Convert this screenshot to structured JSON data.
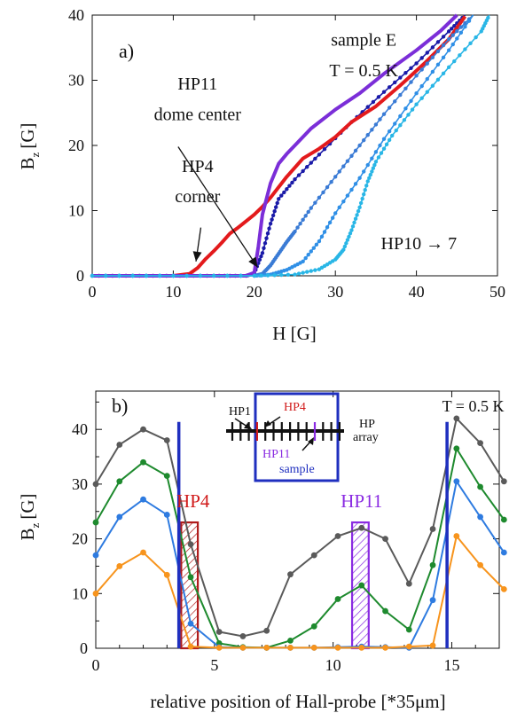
{
  "chart_data": [
    {
      "panel": "a)",
      "type": "line",
      "xlabel": "H [G]",
      "ylabel": "B",
      "ylabel_sub": "z",
      "ylabel_unit": "[G]",
      "xlim": [
        0,
        50
      ],
      "ylim": [
        0,
        40
      ],
      "xticks": [
        0,
        10,
        20,
        30,
        40,
        50
      ],
      "yticks": [
        0,
        10,
        20,
        30,
        40
      ],
      "grid": false,
      "annotations": [
        {
          "text": "sample E",
          "x": 33.5,
          "y": 35.3
        },
        {
          "text": "T = 0.5 K",
          "x": 33.5,
          "y": 30.6
        },
        {
          "text": "HP11",
          "x": 13.0,
          "y": 28.6
        },
        {
          "text": "dome center",
          "x": 13.0,
          "y": 23.9
        },
        {
          "text": "HP4",
          "x": 13.0,
          "y": 15.9
        },
        {
          "text": "corner",
          "x": 13.0,
          "y": 11.3
        },
        {
          "text": "HP10 → 7",
          "x": 40.3,
          "y": 4.1
        }
      ],
      "arrows": [
        {
          "from": [
            10.6,
            19.8
          ],
          "to": [
            20.4,
            1.3
          ]
        },
        {
          "from": [
            13.4,
            7.4
          ],
          "to": [
            12.8,
            2.2
          ]
        }
      ],
      "series": [
        {
          "color": "#1a1aa8",
          "style": "dotted",
          "x": [
            0,
            5,
            10,
            15,
            19,
            20,
            21,
            22,
            23,
            25,
            28,
            32,
            36,
            40,
            44,
            46
          ],
          "y": [
            0,
            0,
            0,
            0,
            0,
            0.4,
            3.5,
            8,
            11.8,
            14.8,
            18.6,
            23.6,
            28.2,
            32.6,
            37.5,
            40
          ]
        },
        {
          "color": "#e31a1c",
          "style": "solid",
          "x": [
            0,
            5,
            10,
            12,
            13,
            14,
            15,
            16,
            17,
            18,
            19,
            20,
            21,
            22,
            24,
            26,
            28,
            30,
            32,
            35,
            38,
            41,
            44,
            46
          ],
          "y": [
            0,
            0,
            0,
            0.3,
            1.2,
            2.6,
            3.8,
            5.1,
            6.5,
            7.4,
            8.4,
            9.4,
            10.6,
            12.0,
            15.2,
            18.0,
            19.5,
            21.3,
            23.6,
            26.0,
            29.2,
            32.6,
            36.3,
            39.8
          ]
        },
        {
          "color": "#7b2ed8",
          "style": "solid",
          "x": [
            0,
            5,
            10,
            15,
            19,
            20,
            20.5,
            21,
            22,
            23,
            24,
            25,
            27,
            30,
            33,
            36,
            40,
            43,
            45
          ],
          "y": [
            0,
            0,
            0,
            0,
            0,
            0.5,
            4.5,
            9.4,
            14.2,
            17.2,
            18.7,
            20.0,
            22.6,
            25.5,
            28.0,
            31.0,
            34.6,
            37.6,
            40
          ]
        },
        {
          "color": "#3a7bd5",
          "style": "dotted",
          "x": [
            0,
            10,
            20,
            21,
            22,
            23,
            24,
            25,
            27,
            30,
            33,
            36,
            40,
            44,
            47
          ],
          "y": [
            0,
            0,
            0,
            0.3,
            1.6,
            3.4,
            5.2,
            6.8,
            10.4,
            15.2,
            20.0,
            24.8,
            30.7,
            36.3,
            40
          ]
        },
        {
          "color": "#2f8fe6",
          "style": "dotted",
          "x": [
            0,
            10,
            20,
            22,
            24,
            26,
            28,
            30,
            33,
            36,
            40,
            44,
            47
          ],
          "y": [
            0,
            0,
            0,
            0.2,
            0.9,
            2.2,
            5.3,
            9.6,
            15.0,
            21.0,
            28.0,
            34.6,
            40
          ]
        },
        {
          "color": "#29b6e6",
          "style": "dotted",
          "x": [
            0,
            10,
            20,
            25,
            28,
            30,
            31,
            32,
            33,
            34,
            35,
            37,
            40,
            44,
            48,
            49
          ],
          "y": [
            0,
            0,
            0,
            0.2,
            1.0,
            2.5,
            4.0,
            7.0,
            10.5,
            14.5,
            17.5,
            21.5,
            26.3,
            32.0,
            37.5,
            40
          ]
        }
      ]
    },
    {
      "panel": "b)",
      "type": "line",
      "xlabel": "relative position of Hall-probe [*35μm]",
      "ylabel": "B",
      "ylabel_sub": "z",
      "ylabel_unit": "[G]",
      "xlim": [
        0,
        17
      ],
      "ylim": [
        0,
        47
      ],
      "xticks": [
        0,
        5,
        10,
        15
      ],
      "yticks": [
        0,
        10,
        20,
        30,
        40
      ],
      "grid": false,
      "annotations": [
        {
          "text": "T = 0.5 K",
          "x": 15.9,
          "y": 43.3,
          "color": "#111111"
        },
        {
          "text": "HP4",
          "x": 4.1,
          "y": 25.8,
          "color": "#d11b1b"
        },
        {
          "text": "HP11",
          "x": 11.2,
          "y": 25.8,
          "color": "#8a2be2"
        }
      ],
      "inset": {
        "labels": [
          {
            "text": "HP1",
            "color": "#111111"
          },
          {
            "text": "HP4",
            "color": "#d11b1b"
          },
          {
            "text": "HP",
            "color": "#111111"
          },
          {
            "text": "array",
            "color": "#111111"
          },
          {
            "text": "HP11",
            "color": "#8a2be2"
          },
          {
            "text": "sample",
            "color": "#1f2fbf"
          }
        ]
      },
      "vlines": [
        {
          "x": 3.5,
          "color": "#1f2fbf"
        },
        {
          "x": 14.8,
          "color": "#1f2fbf"
        }
      ],
      "boxes": [
        {
          "x": [
            3.6,
            4.3
          ],
          "y": [
            0,
            23
          ],
          "color": "#b01c1c"
        },
        {
          "x": [
            10.8,
            11.5
          ],
          "y": [
            0,
            23
          ],
          "color": "#8a2be2"
        }
      ],
      "x": [
        0,
        1,
        2,
        3,
        4,
        5,
        6,
        7,
        8,
        9,
        10,
        11,
        12,
        13,
        14,
        15,
        16,
        17
      ],
      "series": [
        {
          "color": "#5a5a5a",
          "x": [
            0,
            1,
            2,
            3,
            4,
            5.2,
            6.2,
            7.2,
            8.2,
            9.2,
            10.2,
            11.2,
            12.2,
            13.2,
            14.2,
            15.2,
            16.2,
            17.2
          ],
          "y": [
            30,
            37.2,
            40,
            38,
            19,
            3,
            2.2,
            3.2,
            13.5,
            17,
            20.5,
            22,
            20,
            11.8,
            21.8,
            42,
            37.5,
            30.5
          ]
        },
        {
          "color": "#1e8a2e",
          "x": [
            0,
            1,
            2,
            3,
            4,
            5.2,
            6.2,
            7.2,
            8.2,
            9.2,
            10.2,
            11.2,
            12.2,
            13.2,
            14.2,
            15.2,
            16.2,
            17.2
          ],
          "y": [
            23,
            30.5,
            34,
            31.5,
            13,
            0.9,
            0.2,
            0.1,
            1.4,
            4,
            9,
            11.5,
            6.8,
            3.4,
            15.2,
            36.5,
            29.5,
            23.5
          ]
        },
        {
          "color": "#2e7be0",
          "x": [
            0,
            1,
            2,
            3,
            4,
            5.2,
            6.2,
            7.2,
            8.2,
            9.2,
            10.2,
            11.2,
            12.2,
            13.2,
            14.2,
            15.2,
            16.2,
            17.2
          ],
          "y": [
            17,
            24,
            27.2,
            24.4,
            4.5,
            0.2,
            0.1,
            0.1,
            0.1,
            0.1,
            0.2,
            0.3,
            0.2,
            0.1,
            8.8,
            30.5,
            24,
            17.5
          ]
        },
        {
          "color": "#f7941d",
          "x": [
            0,
            1,
            2,
            3,
            4,
            5.2,
            6.2,
            7.2,
            8.2,
            9.2,
            10.2,
            11.2,
            12.2,
            13.2,
            14.2,
            15.2,
            16.2,
            17.2
          ],
          "y": [
            10,
            15,
            17.5,
            13.4,
            0.3,
            0.1,
            0.1,
            0.1,
            0.1,
            0.1,
            0.1,
            0.1,
            0.1,
            0.3,
            0.5,
            20.5,
            15.2,
            10.8
          ]
        }
      ]
    }
  ]
}
